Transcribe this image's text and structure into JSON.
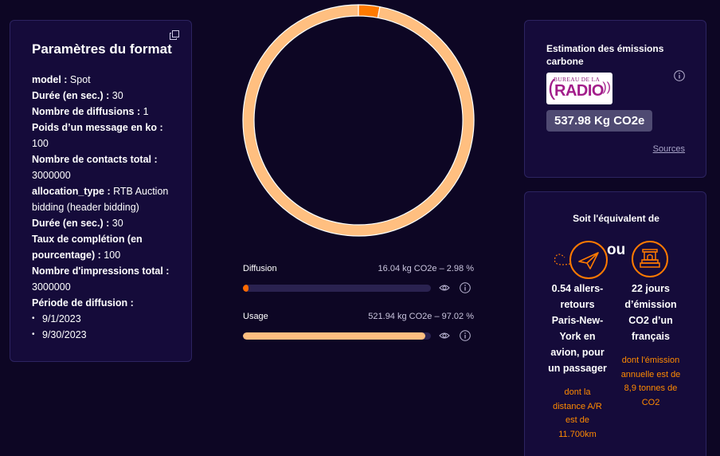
{
  "left_panel": {
    "title": "Paramètres du format",
    "rows": [
      {
        "label": "model :",
        "value": " Spot"
      },
      {
        "label": "Durée (en sec.) :",
        "value": " 30"
      },
      {
        "label": "Nombre de diffusions :",
        "value": " 1"
      },
      {
        "label": "Poids d’un message en ko :",
        "value": " 100"
      },
      {
        "label": "Nombre de contacts total :",
        "value": " 3000000"
      },
      {
        "label": "allocation_type :",
        "value": " RTB Auction bidding (header bidding)"
      },
      {
        "label": "Durée (en sec.) :",
        "value": " 30"
      },
      {
        "label": "Taux de complétion (en pourcentage) :",
        "value": " 100"
      },
      {
        "label": "Nombre d'impressions total :",
        "value": " 3000000"
      },
      {
        "label": "Période de diffusion :",
        "value": ""
      }
    ],
    "dates": [
      "9/1/2023",
      "9/30/2023"
    ]
  },
  "donut": {
    "segments": [
      {
        "name": "Diffusion",
        "share": 2.98,
        "color": "#ff7a00"
      },
      {
        "name": "Usage",
        "share": 97.02,
        "color": "#ffbf80"
      }
    ]
  },
  "breakdown": [
    {
      "label": "Diffusion",
      "value": "16.04 kg CO2e – 2.98 %",
      "fraction": 0.0298,
      "color": "#ff6a00"
    },
    {
      "label": "Usage",
      "value": "521.94 kg CO2e – 97.02 %",
      "fraction": 0.9702,
      "color": "#ffbf80"
    }
  ],
  "estimate": {
    "title": "Estimation des émissions carbone",
    "logo_top": "BUREAU DE LA",
    "logo_main": "RADIO",
    "total": "537.98 Kg CO2e",
    "sources_link": "Sources"
  },
  "equivalent": {
    "title": "Soit l'équivalent de",
    "or": "ou",
    "flight": {
      "main": "0.54 allers-retours Paris-New-York en avion, pour un passager",
      "sub": "dont la distance A/R est de 11.700km"
    },
    "days": {
      "main": "22 jours d’émission CO2 d’un français",
      "sub": "dont l'émission annuelle est de 8,9 tonnes de CO2"
    }
  },
  "colors": {
    "background": "#0d0624",
    "card": "#150b3a",
    "accent": "#ff7a00",
    "light_accent": "#ffbf80"
  },
  "icons": [
    "copy-icon",
    "info-icon",
    "eye-icon",
    "airplane-icon",
    "monument-icon"
  ]
}
